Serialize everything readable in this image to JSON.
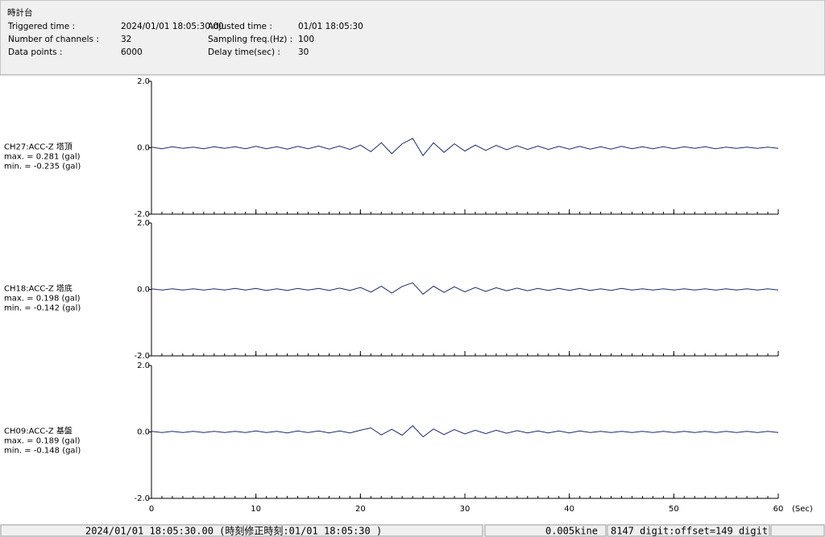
{
  "header": {
    "title": "時計台",
    "fields": [
      {
        "label": "Triggered time :",
        "value": "2024/01/01 18:05:30.00"
      },
      {
        "label": "Adjusted time :",
        "value": "01/01 18:05:30"
      },
      {
        "label": "Number of channels :",
        "value": "32"
      },
      {
        "label": "Sampling freq.(Hz) :",
        "value": "100"
      },
      {
        "label": "Data points :",
        "value": "6000"
      },
      {
        "label": "Delay time(sec) :",
        "value": "30"
      }
    ]
  },
  "chart_data": [
    {
      "type": "line",
      "name": "CH27:ACC-Z 塔頂",
      "max": "max. = 0.281 (gal)",
      "min": "min. = -0.235 (gal)",
      "color": "#1a2a6c",
      "ylim": [
        -2,
        2
      ],
      "yticks": [
        {
          "value": 2,
          "label": "2.0"
        },
        {
          "value": 0,
          "label": "0.0"
        },
        {
          "value": -2,
          "label": "-2.0"
        }
      ],
      "xlim": [
        0,
        60
      ],
      "xticks": [
        0,
        10,
        20,
        30,
        40,
        50,
        60
      ],
      "x": [
        0,
        1,
        2,
        3,
        4,
        5,
        6,
        7,
        8,
        9,
        10,
        11,
        12,
        13,
        14,
        15,
        16,
        17,
        18,
        19,
        20,
        21,
        22,
        23,
        24,
        25,
        26,
        27,
        28,
        29,
        30,
        31,
        32,
        33,
        34,
        35,
        36,
        37,
        38,
        39,
        40,
        41,
        42,
        43,
        44,
        45,
        46,
        47,
        48,
        49,
        50,
        51,
        52,
        53,
        54,
        55,
        56,
        57,
        58,
        59,
        60
      ],
      "values": [
        0.02,
        -0.03,
        0.03,
        -0.02,
        0.02,
        -0.03,
        0.03,
        -0.02,
        0.03,
        -0.03,
        0.04,
        -0.03,
        0.03,
        -0.04,
        0.04,
        -0.03,
        0.05,
        -0.04,
        0.05,
        -0.05,
        0.08,
        -0.12,
        0.15,
        -0.18,
        0.12,
        0.281,
        -0.235,
        0.15,
        -0.14,
        0.12,
        -0.1,
        0.08,
        -0.08,
        0.07,
        -0.06,
        0.06,
        -0.05,
        0.05,
        -0.05,
        0.04,
        -0.04,
        0.04,
        -0.04,
        0.03,
        -0.04,
        0.04,
        -0.03,
        0.03,
        -0.03,
        0.03,
        -0.03,
        0.03,
        -0.02,
        0.03,
        -0.03,
        0.02,
        -0.02,
        0.02,
        -0.02,
        0.02,
        -0.02
      ]
    },
    {
      "type": "line",
      "name": "CH18:ACC-Z 塔底",
      "max": "max. = 0.198 (gal)",
      "min": "min. = -0.142 (gal)",
      "color": "#1a2a6c",
      "ylim": [
        -2,
        2
      ],
      "yticks": [
        {
          "value": 2,
          "label": "2.0"
        },
        {
          "value": 0,
          "label": "0.0"
        },
        {
          "value": -2,
          "label": "-2.0"
        }
      ],
      "xlim": [
        0,
        60
      ],
      "xticks": [
        0,
        10,
        20,
        30,
        40,
        50,
        60
      ],
      "x": [
        0,
        1,
        2,
        3,
        4,
        5,
        6,
        7,
        8,
        9,
        10,
        11,
        12,
        13,
        14,
        15,
        16,
        17,
        18,
        19,
        20,
        21,
        22,
        23,
        24,
        25,
        26,
        27,
        28,
        29,
        30,
        31,
        32,
        33,
        34,
        35,
        36,
        37,
        38,
        39,
        40,
        41,
        42,
        43,
        44,
        45,
        46,
        47,
        48,
        49,
        50,
        51,
        52,
        53,
        54,
        55,
        56,
        57,
        58,
        59,
        60
      ],
      "values": [
        0.02,
        -0.02,
        0.02,
        -0.02,
        0.02,
        -0.02,
        0.02,
        -0.02,
        0.03,
        -0.02,
        0.03,
        -0.03,
        0.02,
        -0.03,
        0.03,
        -0.02,
        0.03,
        -0.03,
        0.04,
        -0.03,
        0.06,
        -0.08,
        0.1,
        -0.11,
        0.09,
        0.198,
        -0.142,
        0.1,
        -0.09,
        0.08,
        -0.07,
        0.06,
        -0.06,
        0.05,
        -0.04,
        0.04,
        -0.04,
        0.03,
        -0.03,
        0.03,
        -0.03,
        0.03,
        -0.03,
        0.02,
        -0.03,
        0.03,
        -0.02,
        0.02,
        -0.02,
        0.02,
        -0.02,
        0.02,
        -0.02,
        0.02,
        -0.02,
        0.02,
        -0.02,
        0.02,
        -0.02,
        0.02,
        -0.02
      ]
    },
    {
      "type": "line",
      "name": "CH09:ACC-Z 基盤",
      "max": "max. = 0.189 (gal)",
      "min": "min. = -0.148 (gal)",
      "color": "#1a2a6c",
      "ylim": [
        -2,
        2
      ],
      "yticks": [
        {
          "value": 2,
          "label": "2.0"
        },
        {
          "value": 0,
          "label": "0.0"
        },
        {
          "value": -2,
          "label": "-2.0"
        }
      ],
      "xlim": [
        0,
        60
      ],
      "xticks": [
        0,
        10,
        20,
        30,
        40,
        50,
        60
      ],
      "x_label": "(Sec)",
      "x": [
        0,
        1,
        2,
        3,
        4,
        5,
        6,
        7,
        8,
        9,
        10,
        11,
        12,
        13,
        14,
        15,
        16,
        17,
        18,
        19,
        20,
        21,
        22,
        23,
        24,
        25,
        26,
        27,
        28,
        29,
        30,
        31,
        32,
        33,
        34,
        35,
        36,
        37,
        38,
        39,
        40,
        41,
        42,
        43,
        44,
        45,
        46,
        47,
        48,
        49,
        50,
        51,
        52,
        53,
        54,
        55,
        56,
        57,
        58,
        59,
        60
      ],
      "values": [
        0.02,
        -0.02,
        0.02,
        -0.02,
        0.02,
        -0.02,
        0.02,
        -0.02,
        0.02,
        -0.02,
        0.03,
        -0.02,
        0.02,
        -0.03,
        0.03,
        -0.02,
        0.03,
        -0.03,
        0.03,
        -0.03,
        0.05,
        0.12,
        -0.09,
        0.08,
        -0.1,
        0.189,
        -0.148,
        0.09,
        -0.08,
        0.07,
        -0.06,
        0.05,
        -0.05,
        0.05,
        -0.04,
        0.04,
        -0.03,
        0.03,
        -0.03,
        0.03,
        -0.03,
        0.03,
        -0.02,
        0.02,
        -0.02,
        0.02,
        -0.02,
        0.02,
        -0.02,
        0.02,
        -0.02,
        0.02,
        -0.02,
        0.02,
        -0.02,
        0.02,
        -0.02,
        0.02,
        -0.02,
        0.02,
        -0.02
      ]
    }
  ],
  "status": {
    "timestamp": "2024/01/01 18:05:30.00  (時刻修正時刻:01/01 18:05:30  )",
    "unit": "0.005kine",
    "digit": "8147 digit:offset=149 digit"
  }
}
